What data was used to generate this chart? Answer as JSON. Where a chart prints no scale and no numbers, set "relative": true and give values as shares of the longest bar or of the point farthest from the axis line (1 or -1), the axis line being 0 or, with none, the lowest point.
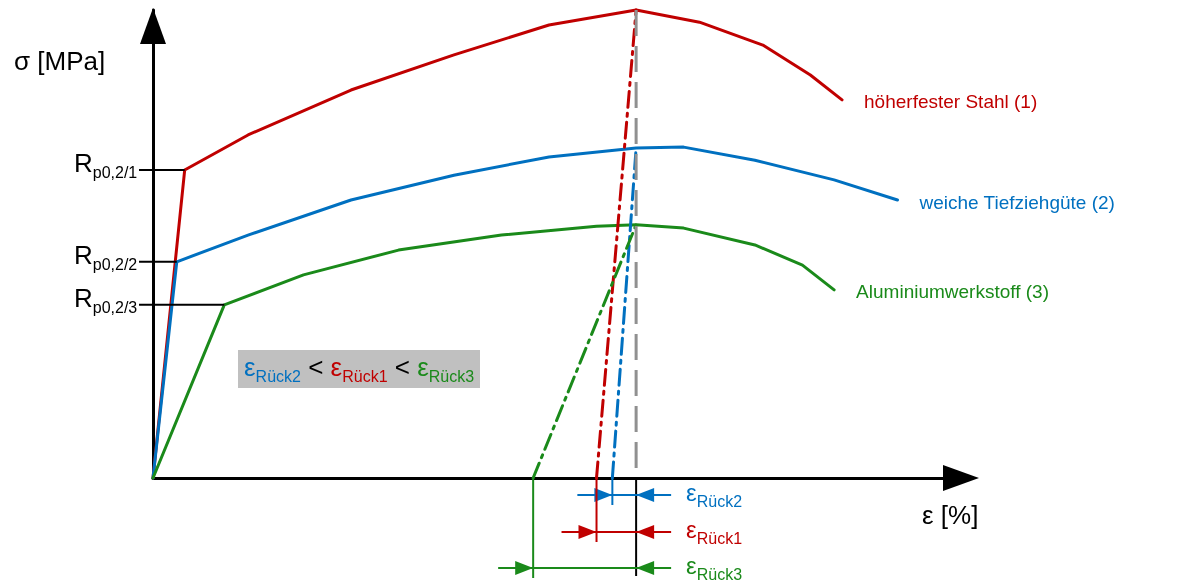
{
  "chart_data": {
    "type": "line",
    "xlabel": "ε [%]",
    "ylabel": "σ [MPa]",
    "relative": true,
    "marker": "none",
    "line_style": "solid",
    "categories": [
      null,
      null,
      null,
      null,
      null,
      null,
      null,
      null,
      null,
      null,
      null,
      null,
      null,
      null,
      null,
      null,
      null,
      null,
      null,
      null,
      null,
      null,
      null,
      null,
      null,
      null,
      null,
      null,
      null,
      null,
      null,
      null,
      null,
      null,
      null,
      null,
      null,
      null,
      null,
      null,
      null,
      null,
      null,
      null,
      null,
      null,
      null,
      null,
      null,
      null,
      null,
      null,
      null,
      null,
      null,
      null,
      null,
      null,
      null,
      null,
      null,
      null,
      null,
      null,
      null,
      null,
      null,
      null,
      null,
      null,
      null,
      null,
      null,
      null,
      null,
      null,
      null,
      null,
      null,
      null,
      null,
      null,
      null,
      null,
      null,
      null,
      null,
      null,
      null,
      null,
      null,
      null,
      null,
      null,
      null,
      null,
      null,
      null,
      null,
      null,
      null
    ],
    "series": [
      {
        "name": "höherfester Stahl (1)",
        "color": "#c00000",
        "values": [
          0,
          null,
          null,
          null,
          0.658,
          null,
          null,
          null,
          null,
          null,
          null,
          null,
          0.733,
          null,
          null,
          null,
          null,
          null,
          null,
          null,
          null,
          null,
          null,
          null,
          null,
          0.829,
          null,
          null,
          null,
          null,
          null,
          null,
          null,
          null,
          null,
          null,
          null,
          null,
          0.904,
          null,
          null,
          null,
          null,
          null,
          null,
          null,
          null,
          null,
          null,
          null,
          0.968,
          null,
          null,
          null,
          null,
          null,
          null,
          null,
          null,
          null,
          null,
          1.0,
          null,
          null,
          null,
          null,
          null,
          null,
          null,
          0.974,
          null,
          null,
          null,
          null,
          null,
          null,
          null,
          0.925,
          null,
          null,
          null,
          null,
          null,
          0.861,
          null,
          null,
          null,
          0.808,
          null,
          null,
          null,
          null,
          null,
          null,
          null,
          null,
          null,
          null,
          null,
          null,
          null
        ]
      },
      {
        "name": "weiche Tiefziehgüte (2)",
        "color": "#0070c0",
        "values": [
          0,
          null,
          null,
          0.462,
          null,
          null,
          null,
          null,
          null,
          null,
          null,
          null,
          0.519,
          null,
          null,
          null,
          null,
          null,
          null,
          null,
          null,
          null,
          null,
          null,
          null,
          0.594,
          null,
          null,
          null,
          null,
          null,
          null,
          null,
          null,
          null,
          null,
          null,
          null,
          0.647,
          null,
          null,
          null,
          null,
          null,
          null,
          null,
          null,
          null,
          null,
          null,
          0.686,
          null,
          null,
          null,
          null,
          null,
          null,
          null,
          null,
          null,
          null,
          0.705,
          null,
          null,
          null,
          null,
          null,
          0.707,
          null,
          null,
          null,
          null,
          null,
          null,
          null,
          null,
          0.679,
          null,
          null,
          null,
          null,
          null,
          null,
          null,
          null,
          null,
          0.637,
          null,
          null,
          null,
          null,
          null,
          null,
          null,
          0.594,
          null,
          null,
          null,
          null,
          null,
          null
        ]
      },
      {
        "name": "Aluminiumwerkstoff (3)",
        "color": "#1a8a1a",
        "values": [
          0,
          null,
          null,
          null,
          null,
          null,
          null,
          null,
          null,
          0.37,
          null,
          null,
          null,
          null,
          null,
          null,
          null,
          null,
          null,
          0.434,
          null,
          null,
          null,
          null,
          null,
          null,
          null,
          null,
          null,
          null,
          null,
          0.487,
          null,
          null,
          null,
          null,
          null,
          null,
          null,
          null,
          null,
          null,
          null,
          null,
          0.519,
          null,
          null,
          null,
          null,
          null,
          null,
          null,
          null,
          null,
          null,
          null,
          0.538,
          null,
          null,
          null,
          null,
          0.541,
          null,
          null,
          null,
          null,
          null,
          0.534,
          null,
          null,
          null,
          null,
          null,
          null,
          null,
          null,
          0.498,
          null,
          null,
          null,
          null,
          null,
          0.455,
          null,
          null,
          null,
          0.402,
          null,
          null,
          null,
          null,
          null,
          null,
          null,
          null,
          null,
          null,
          null,
          null,
          null,
          null
        ]
      },
      {
        "color": "#c00000",
        "line_style": "dashed",
        "values": [
          null,
          null,
          null,
          null,
          null,
          null,
          null,
          null,
          null,
          null,
          null,
          null,
          null,
          null,
          null,
          null,
          null,
          null,
          null,
          null,
          null,
          null,
          null,
          null,
          null,
          null,
          null,
          null,
          null,
          null,
          null,
          null,
          null,
          null,
          null,
          null,
          null,
          null,
          null,
          null,
          null,
          null,
          null,
          null,
          null,
          null,
          null,
          null,
          null,
          null,
          null,
          null,
          null,
          null,
          null,
          null,
          0,
          null,
          null,
          null,
          null,
          1.0,
          null,
          null,
          null,
          null,
          null,
          null,
          null,
          null,
          null,
          null,
          null,
          null,
          null,
          null,
          null,
          null,
          null,
          null,
          null,
          null,
          null,
          null,
          null,
          null,
          null,
          null,
          null,
          null,
          null,
          null,
          null,
          null,
          null,
          null,
          null,
          null,
          null,
          null,
          null
        ]
      },
      {
        "color": "#0070c0",
        "line_style": "dashed",
        "values": [
          null,
          null,
          null,
          null,
          null,
          null,
          null,
          null,
          null,
          null,
          null,
          null,
          null,
          null,
          null,
          null,
          null,
          null,
          null,
          null,
          null,
          null,
          null,
          null,
          null,
          null,
          null,
          null,
          null,
          null,
          null,
          null,
          null,
          null,
          null,
          null,
          null,
          null,
          null,
          null,
          null,
          null,
          null,
          null,
          null,
          null,
          null,
          null,
          null,
          null,
          null,
          null,
          null,
          null,
          null,
          null,
          null,
          null,
          0,
          null,
          null,
          0.705,
          null,
          null,
          null,
          null,
          null,
          null,
          null,
          null,
          null,
          null,
          null,
          null,
          null,
          null,
          null,
          null,
          null,
          null,
          null,
          null,
          null,
          null,
          null,
          null,
          null,
          null,
          null,
          null,
          null,
          null,
          null,
          null,
          null,
          null,
          null,
          null,
          null,
          null,
          null
        ]
      },
      {
        "color": "#1a8a1a",
        "line_style": "dashed",
        "values": [
          null,
          null,
          null,
          null,
          null,
          null,
          null,
          null,
          null,
          null,
          null,
          null,
          null,
          null,
          null,
          null,
          null,
          null,
          null,
          null,
          null,
          null,
          null,
          null,
          null,
          null,
          null,
          null,
          null,
          null,
          null,
          null,
          null,
          null,
          null,
          null,
          null,
          null,
          null,
          null,
          null,
          null,
          null,
          null,
          null,
          null,
          null,
          null,
          0,
          null,
          null,
          null,
          null,
          null,
          null,
          null,
          null,
          null,
          null,
          null,
          null,
          0.541,
          null,
          null,
          null,
          null,
          null,
          null,
          null,
          null,
          null,
          null,
          null,
          null,
          null,
          null,
          null,
          null,
          null,
          null,
          null,
          null,
          null,
          null,
          null,
          null,
          null,
          null,
          null,
          null,
          null,
          null,
          null,
          null,
          null,
          null,
          null,
          null,
          null,
          null,
          null
        ]
      }
    ],
    "annotations": [
      "ε$_{Rück2}$ < ε$_{Rück1}$ < ε$_{Rück3}$",
      "ε$_{Rück2}$",
      "ε$_{Rück1}$",
      "ε$_{Rück3}$",
      "R$_{p0,2/1}$",
      "R$_{p0,2/2}$",
      "R$_{p0,2/3}$"
    ]
  }
}
